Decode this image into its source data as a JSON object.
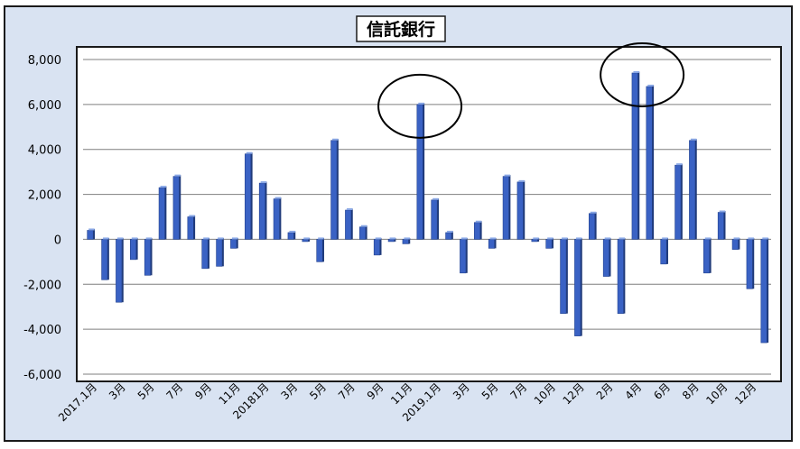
{
  "chart_data": {
    "type": "bar",
    "title": "信託銀行",
    "xlabel": "",
    "ylabel": "",
    "ylim": [
      -6000,
      8000
    ],
    "yticks": [
      8000,
      6000,
      4000,
      2000,
      0,
      -2000,
      -4000,
      -6000
    ],
    "ytick_labels": [
      "8,000",
      "6,000",
      "4,000",
      "2,000",
      "0",
      "-2,000",
      "-4,000",
      "-6,000"
    ],
    "grid": true,
    "legend": "none",
    "bar_color": "#3a62c4",
    "values": [
      400,
      -1800,
      -2800,
      -900,
      -1600,
      2300,
      2800,
      1000,
      -1300,
      -1200,
      -400,
      3800,
      2500,
      1800,
      300,
      -100,
      -1000,
      4400,
      1300,
      550,
      -700,
      -100,
      -200,
      6000,
      1750,
      300,
      -1500,
      750,
      -400,
      2800,
      2550,
      -100,
      -400,
      -3300,
      -4300,
      1150,
      -1650,
      -3300,
      7400,
      6800,
      -1100,
      3300,
      4400,
      -1500,
      1200,
      -450,
      -2200,
      -4600
    ],
    "x_tick_labels": [
      {
        "index": 0,
        "label": "2017.1月"
      },
      {
        "index": 2,
        "label": "3月"
      },
      {
        "index": 4,
        "label": "5月"
      },
      {
        "index": 6,
        "label": "7月"
      },
      {
        "index": 8,
        "label": "9月"
      },
      {
        "index": 10,
        "label": "11月"
      },
      {
        "index": 12,
        "label": "20181月"
      },
      {
        "index": 14,
        "label": "3月"
      },
      {
        "index": 16,
        "label": "5月"
      },
      {
        "index": 18,
        "label": "7月"
      },
      {
        "index": 20,
        "label": "9月"
      },
      {
        "index": 22,
        "label": "11月"
      },
      {
        "index": 24,
        "label": "2019.1月"
      },
      {
        "index": 26,
        "label": "3月"
      },
      {
        "index": 28,
        "label": "5月"
      },
      {
        "index": 30,
        "label": "7月"
      },
      {
        "index": 32,
        "label": "10月"
      },
      {
        "index": 34,
        "label": "12月"
      },
      {
        "index": 36,
        "label": "2月"
      },
      {
        "index": 38,
        "label": "4月"
      },
      {
        "index": 40,
        "label": "6月"
      },
      {
        "index": 42,
        "label": "8月"
      },
      {
        "index": 44,
        "label": "10月"
      },
      {
        "index": 46,
        "label": "12月"
      }
    ],
    "annotations": [
      {
        "type": "circle",
        "around_index": 23
      },
      {
        "type": "circle",
        "around_index": 38.5
      }
    ]
  }
}
